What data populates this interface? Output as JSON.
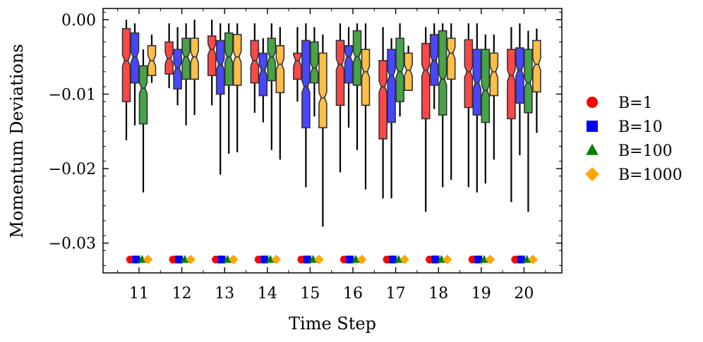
{
  "chart_data": {
    "type": "boxplot",
    "title": "",
    "xlabel": "Time Step",
    "ylabel": "Momentum Deviations",
    "ylim": [
      -0.034,
      0.0015
    ],
    "yticks": [
      0.0,
      -0.01,
      -0.02,
      -0.03
    ],
    "ytick_labels": [
      "0.00",
      "−0.01",
      "−0.02",
      "−0.03"
    ],
    "categories": [
      "11",
      "12",
      "13",
      "14",
      "15",
      "16",
      "17",
      "18",
      "19",
      "20"
    ],
    "marker_y": -0.0322,
    "legend_position": "right",
    "series": [
      {
        "name": "B=1",
        "color": "#ff0000",
        "marker": "circle",
        "boxes": [
          {
            "whislo": -0.0162,
            "q1": -0.011,
            "med": -0.0055,
            "q3": -0.0012,
            "whishi": 0.0
          },
          {
            "whislo": -0.0092,
            "q1": -0.0073,
            "med": -0.0052,
            "q3": -0.003,
            "whishi": -0.0005
          },
          {
            "whislo": -0.0115,
            "q1": -0.0075,
            "med": -0.004,
            "q3": -0.0022,
            "whishi": 0.0
          },
          {
            "whislo": -0.0125,
            "q1": -0.0085,
            "med": -0.0055,
            "q3": -0.0028,
            "whishi": -0.0005
          },
          {
            "whislo": -0.011,
            "q1": -0.008,
            "med": -0.0055,
            "q3": -0.0045,
            "whishi": -0.001
          },
          {
            "whislo": -0.0205,
            "q1": -0.0115,
            "med": -0.006,
            "q3": -0.0028,
            "whishi": -0.0005
          },
          {
            "whislo": -0.024,
            "q1": -0.016,
            "med": -0.009,
            "q3": -0.0055,
            "whishi": -0.001
          },
          {
            "whislo": -0.0258,
            "q1": -0.0133,
            "med": -0.0068,
            "q3": -0.0032,
            "whishi": -0.001
          },
          {
            "whislo": -0.0225,
            "q1": -0.0118,
            "med": -0.007,
            "q3": -0.0027,
            "whishi": -0.0005
          },
          {
            "whislo": -0.0245,
            "q1": -0.0133,
            "med": -0.0075,
            "q3": -0.004,
            "whishi": -0.001
          }
        ]
      },
      {
        "name": "B=10",
        "color": "#0000ff",
        "marker": "square",
        "boxes": [
          {
            "whislo": -0.0142,
            "q1": -0.0085,
            "med": -0.005,
            "q3": -0.0018,
            "whishi": -0.0005
          },
          {
            "whislo": -0.0115,
            "q1": -0.0093,
            "med": -0.0065,
            "q3": -0.004,
            "whishi": -0.001
          },
          {
            "whislo": -0.0208,
            "q1": -0.01,
            "med": -0.006,
            "q3": -0.0028,
            "whishi": -0.0005
          },
          {
            "whislo": -0.0138,
            "q1": -0.0102,
            "med": -0.0068,
            "q3": -0.0045,
            "whishi": -0.0025
          },
          {
            "whislo": -0.0225,
            "q1": -0.0145,
            "med": -0.009,
            "q3": -0.0028,
            "whishi": -0.0005
          },
          {
            "whislo": -0.0145,
            "q1": -0.0085,
            "med": -0.005,
            "q3": -0.0035,
            "whishi": -0.001
          },
          {
            "whislo": -0.024,
            "q1": -0.0138,
            "med": -0.0075,
            "q3": -0.004,
            "whishi": -0.0025
          },
          {
            "whislo": -0.012,
            "q1": -0.0088,
            "med": -0.0055,
            "q3": -0.002,
            "whishi": -0.0005
          },
          {
            "whislo": -0.0232,
            "q1": -0.0128,
            "med": -0.0085,
            "q3": -0.004,
            "whishi": -0.0005
          },
          {
            "whislo": -0.0182,
            "q1": -0.0112,
            "med": -0.0068,
            "q3": -0.0038,
            "whishi": -0.0005
          }
        ]
      },
      {
        "name": "B=100",
        "color": "#008000",
        "marker": "triangle",
        "boxes": [
          {
            "whislo": -0.0232,
            "q1": -0.014,
            "med": -0.0092,
            "q3": -0.0062,
            "whishi": -0.004
          },
          {
            "whislo": -0.0142,
            "q1": -0.008,
            "med": -0.005,
            "q3": -0.0025,
            "whishi": -0.0005
          },
          {
            "whislo": -0.018,
            "q1": -0.0088,
            "med": -0.005,
            "q3": -0.0018,
            "whishi": -0.0005
          },
          {
            "whislo": -0.0175,
            "q1": -0.0082,
            "med": -0.005,
            "q3": -0.0025,
            "whishi": -0.0005
          },
          {
            "whislo": -0.013,
            "q1": -0.0085,
            "med": -0.0065,
            "q3": -0.003,
            "whishi": -0.001
          },
          {
            "whislo": -0.0175,
            "q1": -0.0088,
            "med": -0.005,
            "q3": -0.0015,
            "whishi": -0.0005
          },
          {
            "whislo": -0.013,
            "q1": -0.011,
            "med": -0.007,
            "q3": -0.0025,
            "whishi": -0.0005
          },
          {
            "whislo": -0.0225,
            "q1": -0.0128,
            "med": -0.008,
            "q3": -0.0015,
            "whishi": -0.0005
          },
          {
            "whislo": -0.022,
            "q1": -0.0138,
            "med": -0.0095,
            "q3": -0.004,
            "whishi": -0.002
          },
          {
            "whislo": -0.0258,
            "q1": -0.0125,
            "med": -0.0085,
            "q3": -0.004,
            "whishi": -0.0015
          }
        ]
      },
      {
        "name": "B=1000",
        "color": "#ffa500",
        "marker": "diamond",
        "boxes": [
          {
            "whislo": -0.0085,
            "q1": -0.0075,
            "med": -0.0055,
            "q3": -0.0035,
            "whishi": -0.002
          },
          {
            "whislo": -0.0128,
            "q1": -0.008,
            "med": -0.005,
            "q3": -0.0025,
            "whishi": 0.0
          },
          {
            "whislo": -0.0178,
            "q1": -0.0088,
            "med": -0.005,
            "q3": -0.002,
            "whishi": -0.0005
          },
          {
            "whislo": -0.0188,
            "q1": -0.0098,
            "med": -0.006,
            "q3": -0.0035,
            "whishi": -0.001
          },
          {
            "whislo": -0.0278,
            "q1": -0.0145,
            "med": -0.0105,
            "q3": -0.0045,
            "whishi": -0.002
          },
          {
            "whislo": -0.0228,
            "q1": -0.0115,
            "med": -0.007,
            "q3": -0.004,
            "whishi": -0.0005
          },
          {
            "whislo": -0.0095,
            "q1": -0.0095,
            "med": -0.0068,
            "q3": -0.0045,
            "whishi": -0.0035
          },
          {
            "whislo": -0.0215,
            "q1": -0.008,
            "med": -0.0045,
            "q3": -0.0025,
            "whishi": -0.0005
          },
          {
            "whislo": -0.0188,
            "q1": -0.0102,
            "med": -0.007,
            "q3": -0.0045,
            "whishi": -0.002
          },
          {
            "whislo": -0.0152,
            "q1": -0.0097,
            "med": -0.006,
            "q3": -0.0028,
            "whishi": -0.0012
          }
        ]
      }
    ]
  }
}
